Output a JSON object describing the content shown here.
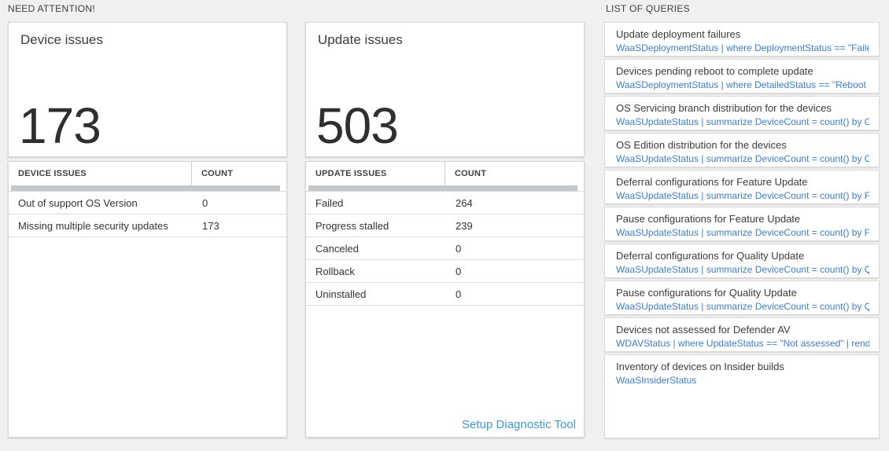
{
  "sections": {
    "need_attention_label": "NEED ATTENTION!",
    "queries_label": "LIST OF QUERIES"
  },
  "device_issues": {
    "card_title": "Device issues",
    "total": "173",
    "table": {
      "headers": [
        "DEVICE ISSUES",
        "COUNT"
      ],
      "rows": [
        [
          "Out of support OS Version",
          "0"
        ],
        [
          "Missing multiple security updates",
          "173"
        ]
      ]
    }
  },
  "update_issues": {
    "card_title": "Update issues",
    "total": "503",
    "table": {
      "headers": [
        "UPDATE ISSUES",
        "COUNT"
      ],
      "rows": [
        [
          "Failed",
          "264"
        ],
        [
          "Progress stalled",
          "239"
        ],
        [
          "Canceled",
          "0"
        ],
        [
          "Rollback",
          "0"
        ],
        [
          "Uninstalled",
          "0"
        ]
      ]
    },
    "setup_link_label": "Setup Diagnostic Tool"
  },
  "query_list": {
    "items": [
      {
        "title": "Update deployment failures",
        "query": "WaaSDeploymentStatus | where DeploymentStatus == \"Failed\" |..."
      },
      {
        "title": "Devices pending reboot to complete update",
        "query": "WaaSDeploymentStatus | where DetailedStatus == \"Reboot pend..."
      },
      {
        "title": "OS Servicing branch distribution for the devices",
        "query": "WaaSUpdateStatus | summarize DeviceCount = count() by OSSer..."
      },
      {
        "title": "OS Edition distribution for the devices",
        "query": "WaaSUpdateStatus | summarize DeviceCount = count() by OSEdit..."
      },
      {
        "title": "Deferral configurations for Feature Update",
        "query": "WaaSUpdateStatus | summarize DeviceCount = count() by Featur..."
      },
      {
        "title": "Pause configurations for Feature Update",
        "query": "WaaSUpdateStatus | summarize DeviceCount = count() by Featur..."
      },
      {
        "title": "Deferral configurations for Quality Update",
        "query": "WaaSUpdateStatus | summarize DeviceCount = count() by Qualit..."
      },
      {
        "title": "Pause configurations for Quality Update",
        "query": "WaaSUpdateStatus | summarize DeviceCount = count() by Qualit..."
      },
      {
        "title": "Devices not assessed for Defender AV",
        "query": "WDAVStatus | where UpdateStatus == \"Not assessed\" | render ta..."
      },
      {
        "title": "Inventory of devices on Insider builds",
        "query": "WaaSInsiderStatus"
      }
    ]
  },
  "colors": {
    "page_background": "#f0f0f0",
    "panel_background": "#ffffff",
    "query_link_blue": "#3c7ec7",
    "setup_link_blue": "#4296d2",
    "big_number_gray": "#2f2f2f",
    "scrollbar_gray": "#c5c8cb"
  }
}
